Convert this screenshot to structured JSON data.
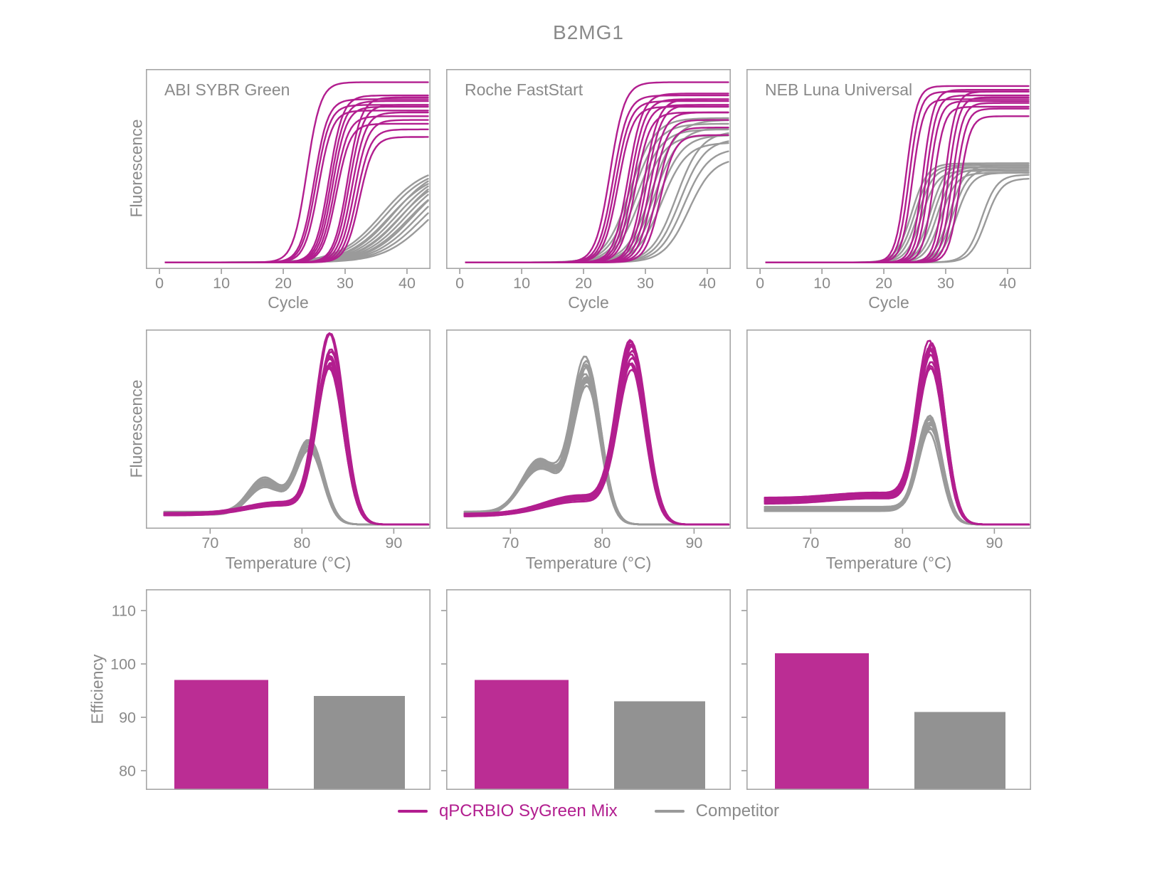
{
  "title": "B2MG1",
  "colors": {
    "sygreen_line": "#b21e8f",
    "sygreen_fill": "#bb2d94",
    "competitor_line": "#9a9a9a",
    "competitor_fill": "#929292",
    "border": "#a6a6a6",
    "tick": "#9b9b9b",
    "text": "#8a8a8a"
  },
  "axis_labels": {
    "cycle": "Cycle",
    "temperature": "Temperature (°C)",
    "fluorescence": "Fluorescence",
    "efficiency": "Efficiency"
  },
  "legend": {
    "items": [
      {
        "label": "qPCRBIO SyGreen Mix",
        "series": "sygreen"
      },
      {
        "label": "Competitor",
        "series": "competitor"
      }
    ]
  },
  "chart_data": {
    "layout": "3 columns (reagent mixes) x 3 rows (amplification curves, melt curves, efficiency bars)",
    "columns": [
      "ABI SYBR Green",
      "Roche FastStart",
      "NEB Luna Universal"
    ],
    "amplification": {
      "type": "line",
      "xlabel": "Cycle",
      "ylabel": "Fluorescence",
      "xticks": [
        0,
        10,
        20,
        30,
        40
      ],
      "xlim": [
        -2.2,
        43.8
      ],
      "ylim": [
        0,
        1.06
      ],
      "cycle_range": [
        1,
        43.6
      ],
      "baseline": 0.035,
      "panels": [
        {
          "label": "ABI SYBR Green",
          "sygreen_slope": 0.9,
          "sygreen_curves": [
            [
              23.8,
              0.99
            ],
            [
              25.0,
              0.9
            ],
            [
              25.3,
              0.87
            ],
            [
              25.7,
              0.84
            ],
            [
              27.4,
              0.92
            ],
            [
              27.7,
              0.89
            ],
            [
              28.0,
              0.86
            ],
            [
              28.3,
              0.81
            ],
            [
              28.6,
              0.77
            ],
            [
              30.4,
              0.91
            ],
            [
              30.7,
              0.87
            ],
            [
              31.1,
              0.83
            ],
            [
              31.5,
              0.79
            ],
            [
              31.9,
              0.74
            ],
            [
              32.3,
              0.7
            ]
          ],
          "competitor_slope": 0.29,
          "competitor_curves": [
            [
              36.0,
              0.55
            ],
            [
              36.6,
              0.54
            ],
            [
              37.2,
              0.52
            ],
            [
              37.8,
              0.55
            ],
            [
              38.3,
              0.53
            ],
            [
              38.8,
              0.51
            ],
            [
              39.3,
              0.54
            ],
            [
              39.8,
              0.52
            ],
            [
              40.3,
              0.5
            ],
            [
              40.9,
              0.52
            ],
            [
              41.5,
              0.5
            ],
            [
              42.2,
              0.48
            ],
            [
              43.0,
              0.46
            ]
          ]
        },
        {
          "label": "Roche FastStart",
          "sygreen_slope": 0.85,
          "sygreen_curves": [
            [
              24.3,
              0.99
            ],
            [
              24.8,
              0.92
            ],
            [
              25.2,
              0.89
            ],
            [
              25.6,
              0.86
            ],
            [
              27.2,
              0.93
            ],
            [
              27.6,
              0.9
            ],
            [
              28.0,
              0.87
            ],
            [
              28.4,
              0.83
            ],
            [
              29.8,
              0.9
            ],
            [
              30.2,
              0.87
            ],
            [
              30.7,
              0.83
            ],
            [
              31.2,
              0.79
            ],
            [
              31.8,
              0.75
            ],
            [
              32.4,
              0.71
            ]
          ],
          "competitor_slope": 0.5,
          "competitor_curves": [
            [
              27.5,
              0.8
            ],
            [
              28.0,
              0.77
            ],
            [
              28.6,
              0.74
            ],
            [
              29.2,
              0.71
            ],
            [
              31.0,
              0.79
            ],
            [
              31.5,
              0.75
            ],
            [
              32.0,
              0.71
            ],
            [
              32.6,
              0.67
            ],
            [
              35.0,
              0.73
            ],
            [
              35.6,
              0.69
            ],
            [
              36.2,
              0.64
            ],
            [
              37.0,
              0.59
            ]
          ]
        },
        {
          "label": "NEB Luna Universal",
          "sygreen_slope": 1.15,
          "sygreen_curves": [
            [
              23.6,
              0.97
            ],
            [
              24.1,
              0.94
            ],
            [
              24.6,
              0.9
            ],
            [
              26.3,
              0.95
            ],
            [
              26.8,
              0.92
            ],
            [
              27.3,
              0.89
            ],
            [
              28.0,
              0.86
            ],
            [
              29.9,
              0.94
            ],
            [
              30.4,
              0.91
            ],
            [
              31.0,
              0.88
            ],
            [
              31.6,
              0.85
            ],
            [
              32.2,
              0.81
            ]
          ],
          "competitor_slope": 0.8,
          "competitor_curves": [
            [
              24.5,
              0.56
            ],
            [
              25.0,
              0.55
            ],
            [
              25.5,
              0.54
            ],
            [
              26.1,
              0.52
            ],
            [
              27.5,
              0.56
            ],
            [
              28.0,
              0.54
            ],
            [
              28.6,
              0.53
            ],
            [
              29.2,
              0.51
            ],
            [
              30.6,
              0.55
            ],
            [
              31.1,
              0.53
            ],
            [
              31.7,
              0.51
            ],
            [
              35.8,
              0.5
            ],
            [
              36.5,
              0.48
            ]
          ]
        }
      ]
    },
    "melt": {
      "type": "line",
      "xlabel": "Temperature (°C)",
      "ylabel": "Fluorescence",
      "xticks": [
        70,
        80,
        90
      ],
      "xlim": [
        63,
        94
      ],
      "ylim": [
        0,
        1.04
      ],
      "temperature_range": [
        65,
        93.8
      ],
      "replicates": 12,
      "panels": [
        {
          "label": "ABI SYBR Green",
          "sygreen": {
            "baseline": 0.055,
            "bumps": [
              [
                77.5,
                3.5,
                0.05
              ]
            ],
            "peaks": [
              [
                83.1,
                1.5,
                0.95
              ]
            ],
            "cutoff": 84.2
          },
          "competitor": {
            "baseline": 0.06,
            "bumps": [
              [
                75.9,
                1.7,
                0.16
              ]
            ],
            "peaks": [
              [
                80.8,
                1.45,
                0.4
              ]
            ],
            "cutoff": 81.9
          }
        },
        {
          "label": "Roche FastStart",
          "sygreen": {
            "baseline": 0.05,
            "bumps": [
              [
                77.5,
                3.8,
                0.085
              ]
            ],
            "peaks": [
              [
                83.2,
                1.55,
                0.92
              ]
            ],
            "cutoff": 84.3
          },
          "competitor": {
            "baseline": 0.06,
            "bumps": [
              [
                73.2,
                2.0,
                0.26
              ]
            ],
            "peaks": [
              [
                78.3,
                1.5,
                0.83
              ]
            ],
            "cutoff": 79.6
          }
        },
        {
          "label": "NEB Luna Universal",
          "sygreen": {
            "baseline": 0.125,
            "bumps": [
              [
                73.5,
                3.0,
                0.012
              ],
              [
                78.0,
                3.0,
                0.02
              ]
            ],
            "peaks": [
              [
                83.1,
                1.4,
                0.88
              ]
            ],
            "cutoff": 84.2
          },
          "competitor": {
            "baseline": 0.082,
            "bumps": [],
            "peaks": [
              [
                83.0,
                1.3,
                0.52
              ]
            ],
            "cutoff": 84.0
          }
        }
      ]
    },
    "efficiency": {
      "type": "bar",
      "ylabel": "Efficiency",
      "yticks": [
        80,
        90,
        100,
        110
      ],
      "ylim": [
        76.4,
        114
      ],
      "panels": [
        {
          "label": "ABI SYBR Green",
          "sygreen": 97,
          "competitor": 94
        },
        {
          "label": "Roche FastStart",
          "sygreen": 97,
          "competitor": 93
        },
        {
          "label": "NEB Luna Universal",
          "sygreen": 102,
          "competitor": 91
        }
      ]
    }
  }
}
